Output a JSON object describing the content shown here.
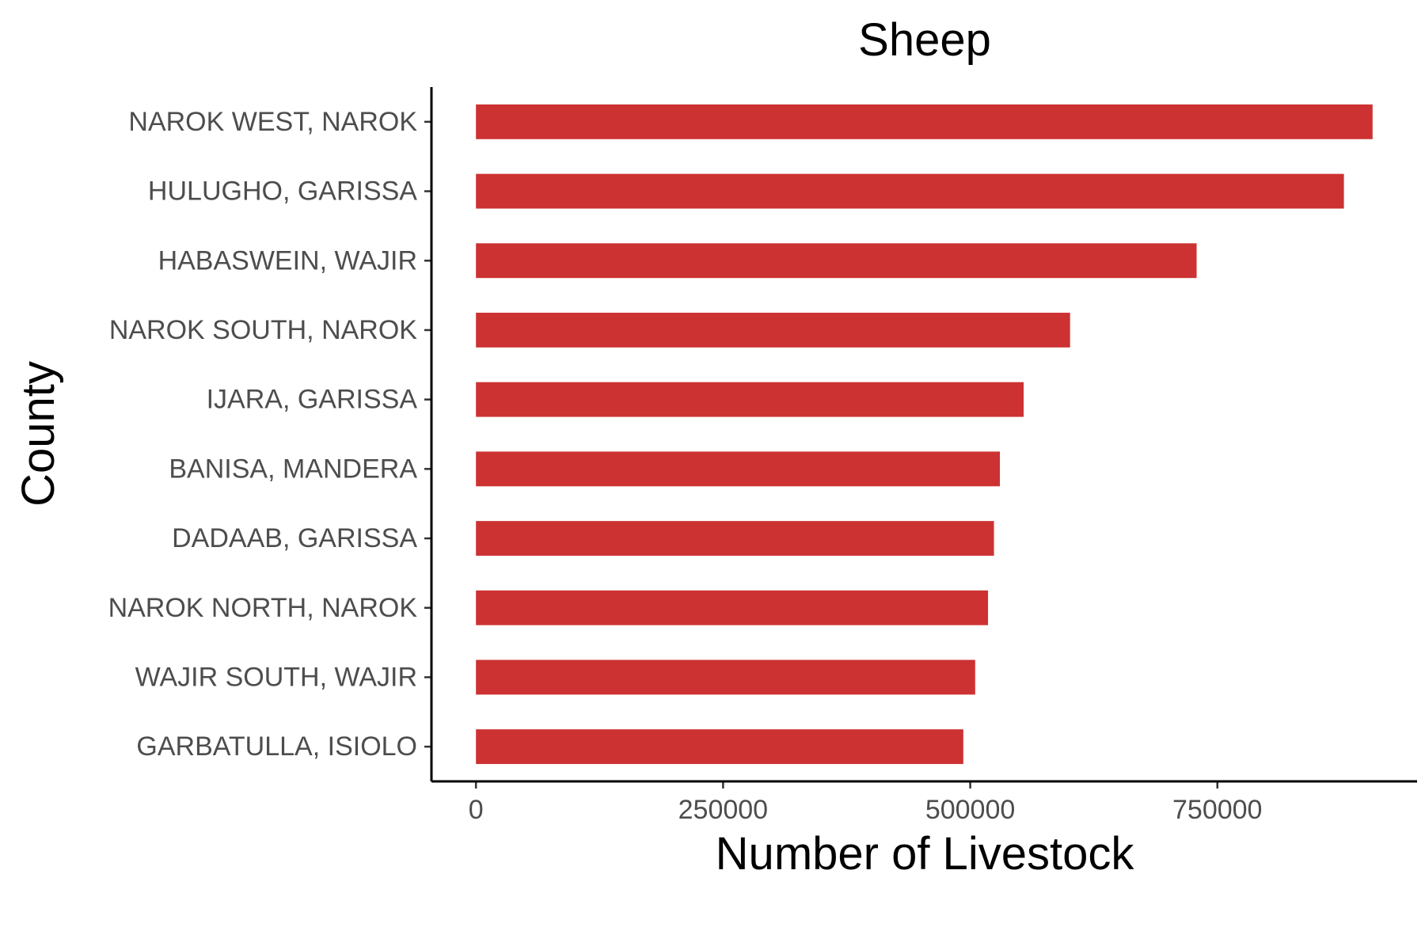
{
  "chart_data": {
    "type": "bar",
    "orientation": "horizontal",
    "title": "Sheep",
    "xlabel": "Number of Livestock",
    "ylabel": "County",
    "categories": [
      "NAROK WEST, NAROK",
      "HULUGHO, GARISSA",
      "HABASWEIN, WAJIR",
      "NAROK SOUTH, NAROK",
      "IJARA, GARISSA",
      "BANISA, MANDERA",
      "DADAAB, GARISSA",
      "NAROK NORTH, NAROK",
      "WAJIR SOUTH, WAJIR",
      "GARBATULLA, ISIOLO"
    ],
    "values": [
      907000,
      878000,
      729000,
      601000,
      554000,
      530000,
      524000,
      518000,
      505000,
      493000
    ],
    "xlim": [
      -45000,
      952000
    ],
    "xticks": [
      0,
      250000,
      500000,
      750000
    ],
    "xtick_labels": [
      "0",
      "250000",
      "500000",
      "750000"
    ],
    "bar_color": "#cd3232",
    "grid": false,
    "legend": "none"
  }
}
